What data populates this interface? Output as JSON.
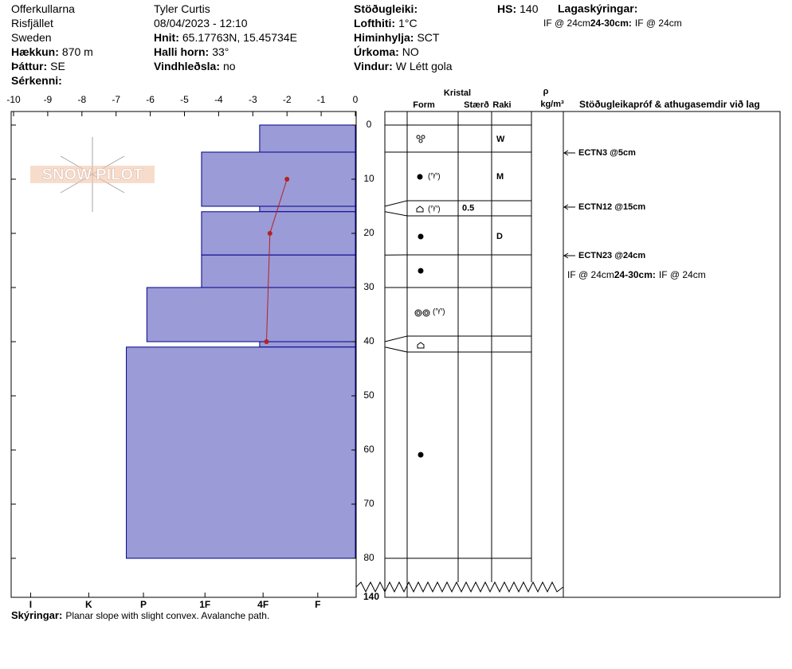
{
  "header": {
    "col1": [
      {
        "text": "Offerkullarna"
      },
      {
        "text": "Risfjället"
      },
      {
        "text": "Sweden"
      },
      {
        "label": "Hækkun:",
        "value": "870 m"
      },
      {
        "label": "Þáttur:",
        "value": "SE"
      },
      {
        "label": "Sérkenni:"
      }
    ],
    "col2": [
      {
        "text": "Tyler Curtis"
      },
      {
        "text": "08/04/2023 - 12:10"
      },
      {
        "label": "Hnit:",
        "value": "65.17763N, 15.45734E"
      },
      {
        "label": "Halli horn:",
        "value": "33°"
      },
      {
        "label": "Vindhleðsla:",
        "value": "no"
      }
    ],
    "col3": [
      {
        "label": "Stöðugleiki:"
      },
      {
        "label": "Lofthiti:",
        "value": "1°C"
      },
      {
        "label": "Himinhylja:",
        "value": "SCT"
      },
      {
        "label": "Úrkoma:",
        "value": "NO"
      },
      {
        "label": "Vindur:",
        "value": "W Létt gola"
      }
    ],
    "hs": {
      "label": "HS:",
      "value": "140"
    },
    "notes_title": "Lagaskýringar:"
  },
  "layer_notes": [
    {
      "range": "24-30cm:",
      "text": "IF @ 24cm"
    }
  ],
  "watermark": "SNOW PILOT",
  "hardness_chart": {
    "xlim": [
      -10,
      0
    ],
    "xticks": [
      -10,
      -9,
      -8,
      -7,
      -6,
      -5,
      -4,
      -3,
      -2,
      -1,
      0
    ],
    "depth_ticks": [
      0,
      10,
      20,
      30,
      40,
      50,
      60,
      70,
      80
    ],
    "depth_break_tick": 140,
    "hardness_ticks": [
      {
        "value": -9.5,
        "label": "I"
      },
      {
        "value": -7.8,
        "label": "K"
      },
      {
        "value": -6.2,
        "label": "P"
      },
      {
        "value": -4.4,
        "label": "1F"
      },
      {
        "value": -2.7,
        "label": "4F"
      },
      {
        "value": -1.1,
        "label": "F"
      }
    ],
    "bar_color": "#9b9bd7",
    "temperature": [
      {
        "depth": 10,
        "temp": -2.0
      },
      {
        "depth": 20,
        "temp": -2.5
      },
      {
        "depth": 40,
        "temp": -2.6
      }
    ],
    "temperature_color": "#b22222"
  },
  "layers": [
    {
      "top": 0,
      "bottom": 5,
      "hardness": -2.8,
      "moisture": "W"
    },
    {
      "top": 5,
      "bottom": 15,
      "hardness": -4.5,
      "moisture": "M"
    },
    {
      "top": 15,
      "bottom": 16,
      "hardness": -2.8,
      "size": "0.5"
    },
    {
      "top": 16,
      "bottom": 24,
      "hardness": -4.5,
      "moisture": "D"
    },
    {
      "top": 24,
      "bottom": 30,
      "hardness": -4.5
    },
    {
      "top": 30,
      "bottom": 40,
      "hardness": -6.1
    },
    {
      "top": 40,
      "bottom": 41,
      "hardness": -2.8
    },
    {
      "top": 41,
      "bottom": 80,
      "hardness": -6.7
    }
  ],
  "columns": {
    "crystal": "Kristal",
    "form": "Form",
    "size": "Stærð",
    "moisture": "Raki",
    "density": "ρ",
    "density_unit": "kg/m³",
    "tests": "Stöðugleikapróf & athugasemdir við lag"
  },
  "stability_tests": [
    "ECTN3 @5cm",
    "ECTN12 @15cm",
    "ECTN23 @24cm"
  ],
  "footer": {
    "label": "Skýringar:",
    "text": "Planar slope with slight convex. Avalanche path."
  }
}
